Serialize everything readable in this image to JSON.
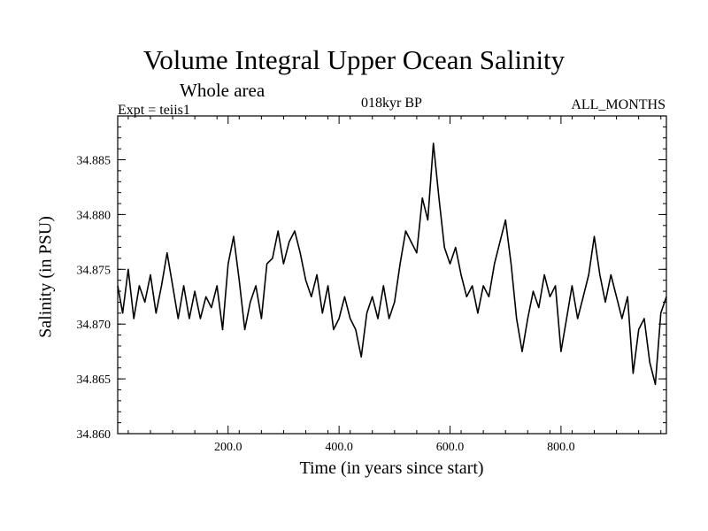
{
  "chart_data": {
    "type": "line",
    "title": "Volume Integral Upper Ocean Salinity",
    "subtitle": "Whole area",
    "left_label": "Expt = teiis1",
    "center_label": "018kyr BP",
    "right_label": "ALL_MONTHS",
    "xlabel": "Time (in years since start)",
    "ylabel": "Salinity (in PSU)",
    "xlim": [
      1,
      990
    ],
    "ylim": [
      34.86,
      34.889
    ],
    "x_ticks": [
      200,
      400,
      600,
      800
    ],
    "x_tick_labels": [
      "200.0",
      "400.0",
      "600.0",
      "800.0"
    ],
    "y_ticks": [
      34.86,
      34.865,
      34.87,
      34.875,
      34.88,
      34.885
    ],
    "y_tick_labels": [
      "34.860",
      "34.865",
      "34.870",
      "34.875",
      "34.880",
      "34.885"
    ],
    "series": [
      {
        "color": "#000000",
        "x": [
          1,
          10,
          20,
          30,
          40,
          50,
          60,
          70,
          80,
          90,
          100,
          110,
          120,
          130,
          140,
          150,
          160,
          170,
          180,
          190,
          200,
          210,
          220,
          230,
          240,
          250,
          260,
          270,
          280,
          290,
          300,
          310,
          320,
          330,
          340,
          350,
          360,
          370,
          380,
          390,
          400,
          410,
          420,
          430,
          440,
          450,
          460,
          470,
          480,
          490,
          500,
          510,
          520,
          530,
          540,
          550,
          560,
          570,
          580,
          590,
          600,
          610,
          620,
          630,
          640,
          650,
          660,
          670,
          680,
          690,
          700,
          710,
          720,
          730,
          740,
          750,
          760,
          770,
          780,
          790,
          800,
          810,
          820,
          830,
          840,
          850,
          860,
          870,
          880,
          890,
          900,
          910,
          920,
          930,
          940,
          950,
          960,
          970,
          980,
          990
        ],
        "y": [
          34.8735,
          34.871,
          34.875,
          34.8705,
          34.8735,
          34.872,
          34.8745,
          34.871,
          34.8735,
          34.8765,
          34.8735,
          34.8705,
          34.8735,
          34.8705,
          34.873,
          34.8705,
          34.8725,
          34.8715,
          34.8735,
          34.8695,
          34.8755,
          34.878,
          34.874,
          34.8695,
          34.872,
          34.8735,
          34.8705,
          34.8755,
          34.876,
          34.8785,
          34.8755,
          34.8775,
          34.8785,
          34.8765,
          34.874,
          34.8725,
          34.8745,
          34.871,
          34.8735,
          34.8695,
          34.8705,
          34.8725,
          34.8705,
          34.8695,
          34.867,
          34.871,
          34.8725,
          34.8705,
          34.8735,
          34.8705,
          34.872,
          34.8755,
          34.8785,
          34.8775,
          34.8765,
          34.8815,
          34.8795,
          34.8865,
          34.8815,
          34.877,
          34.8755,
          34.877,
          34.8745,
          34.8725,
          34.8735,
          34.871,
          34.8735,
          34.8725,
          34.8755,
          34.8775,
          34.8795,
          34.8755,
          34.8705,
          34.8675,
          34.8705,
          34.873,
          34.8715,
          34.8745,
          34.8725,
          34.8735,
          34.8675,
          34.8705,
          34.8735,
          34.8705,
          34.8725,
          34.8745,
          34.878,
          34.8745,
          34.872,
          34.8745,
          34.8725,
          34.8705,
          34.8725,
          34.8655,
          34.8695,
          34.8705,
          34.8665,
          34.8645,
          34.871,
          34.8725
        ]
      }
    ]
  }
}
